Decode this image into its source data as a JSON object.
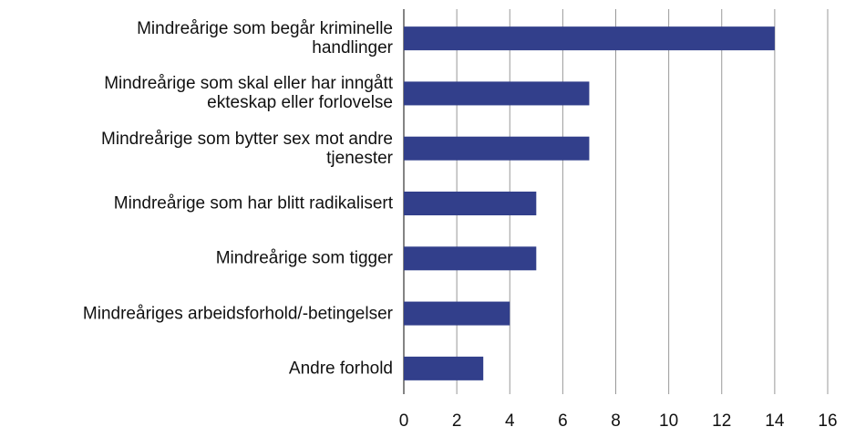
{
  "chart_data": {
    "type": "bar",
    "orientation": "horizontal",
    "categories": [
      "Mindreårige som begår kriminelle\nhandlinger",
      "Mindreårige som skal eller har inngått\nekteskap eller forlovelse",
      "Mindreårige som bytter sex mot andre\ntjenester",
      "Mindreårige som har blitt radikalisert",
      "Mindreårige som tigger",
      "Mindreåriges arbeidsforhold/-betingelser",
      "Andre forhold"
    ],
    "values": [
      14,
      7,
      7,
      5,
      5,
      4,
      3
    ],
    "color": "#323f8b",
    "xlim": [
      0,
      16
    ],
    "xticks": [
      0,
      2,
      4,
      6,
      8,
      10,
      12,
      14,
      16
    ],
    "grid": true
  }
}
